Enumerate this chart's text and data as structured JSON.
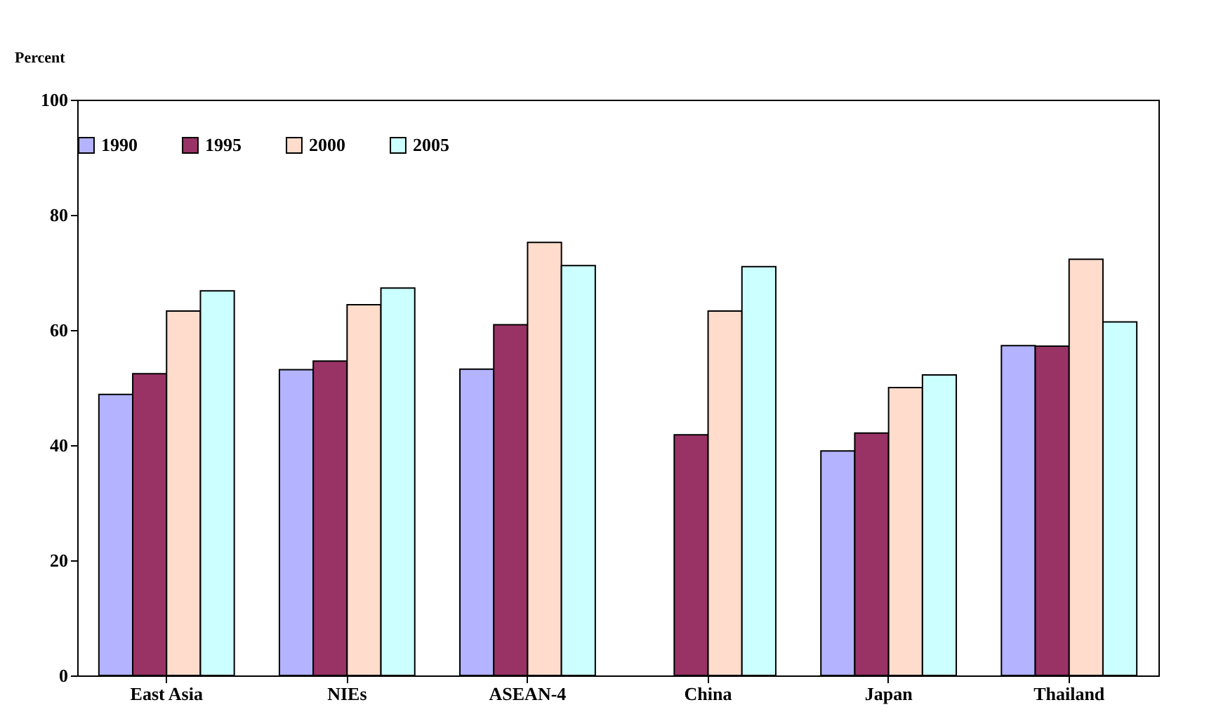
{
  "chart_data": {
    "type": "bar",
    "ylabel": "Percent",
    "categories": [
      "East Asia",
      "NIEs",
      "ASEAN-4",
      "China",
      "Japan",
      "Thailand"
    ],
    "series": [
      {
        "name": "1990",
        "color": "#b3b3ff",
        "values": [
          48.8,
          53.1,
          53.2,
          null,
          39.0,
          57.3
        ]
      },
      {
        "name": "1995",
        "color": "#993366",
        "values": [
          52.4,
          54.6,
          60.9,
          41.8,
          42.1,
          57.2
        ]
      },
      {
        "name": "2000",
        "color": "#ffdccc",
        "values": [
          63.3,
          64.4,
          75.2,
          63.3,
          50.0,
          72.3
        ]
      },
      {
        "name": "2005",
        "color": "#ccffff",
        "values": [
          66.8,
          67.3,
          71.2,
          71.0,
          52.2,
          61.4
        ]
      }
    ],
    "ylim": [
      0,
      100
    ],
    "yticks": [
      0,
      20,
      40,
      60,
      80,
      100
    ],
    "grid": false,
    "legend": "top"
  }
}
